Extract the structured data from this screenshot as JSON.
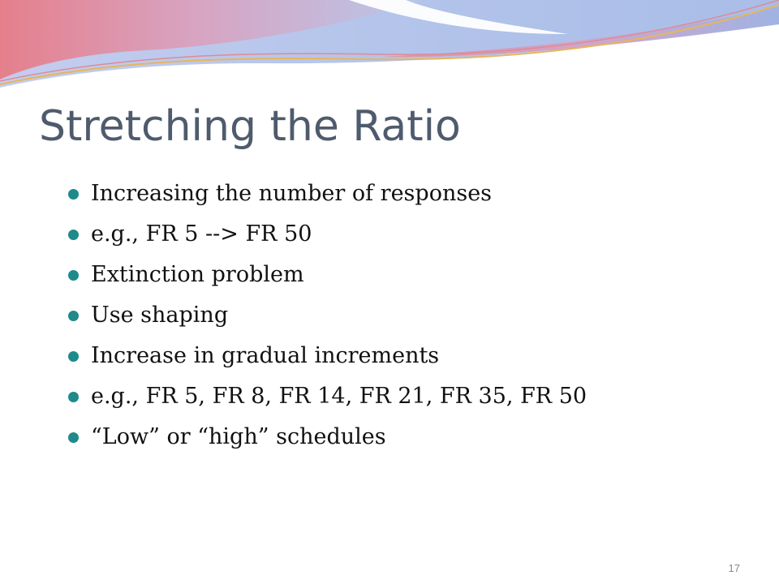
{
  "slide": {
    "title": "Stretching the Ratio",
    "bullets": [
      "Increasing the number of responses",
      "e.g., FR 5 --> FR 50",
      "Extinction problem",
      "Use shaping",
      "Increase in gradual increments",
      "e.g., FR 5, FR 8, FR 14, FR 21, FR 35, FR 50",
      "“Low” or “high” schedules"
    ],
    "page_number": "17"
  },
  "theme": {
    "title_color": "#4f5b6d",
    "bullet_color": "#1f8a8a",
    "wave_colors": [
      "#e7929b",
      "#b6c4e6",
      "#d7a8c4",
      "#e9c37a"
    ]
  }
}
